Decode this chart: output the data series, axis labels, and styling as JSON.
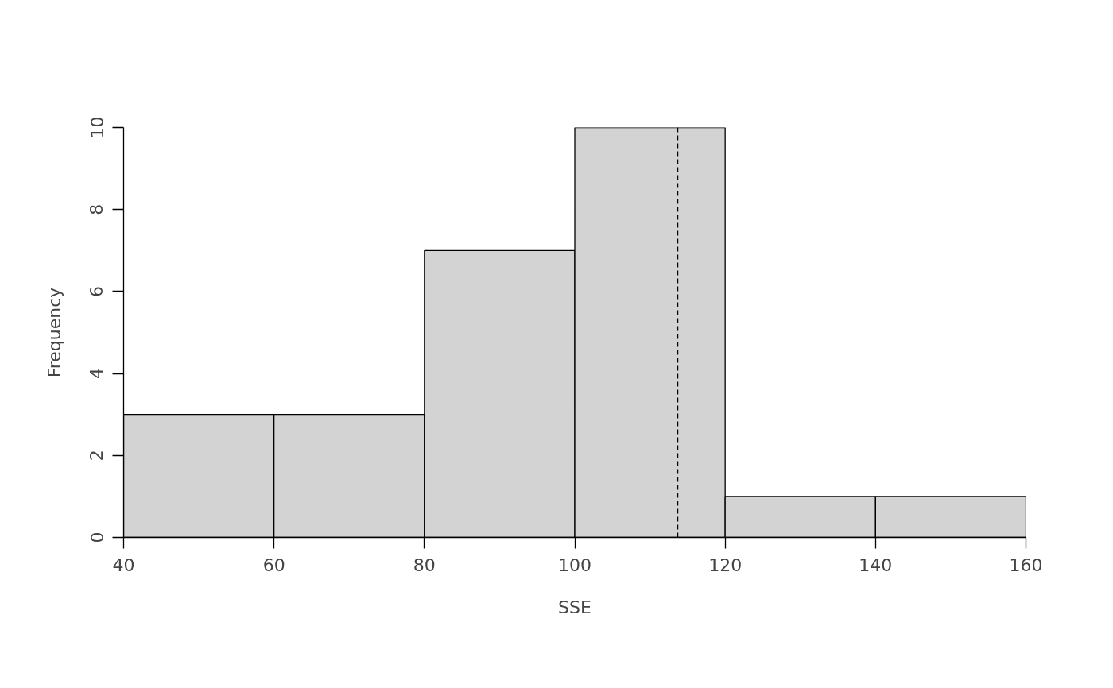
{
  "chart_data": {
    "type": "histogram",
    "xlabel": "SSE",
    "ylabel": "Frequency",
    "bins": [
      40,
      60,
      80,
      100,
      120,
      140,
      160
    ],
    "values": [
      3,
      3,
      7,
      10,
      1,
      1
    ],
    "color": "#d3d3d3",
    "xlim": [
      40,
      160
    ],
    "xticks": [
      40,
      60,
      80,
      100,
      120,
      140,
      160
    ],
    "ylim": [
      0,
      10
    ],
    "yticks": [
      0,
      2,
      4,
      6,
      8,
      10
    ],
    "grid": false,
    "ref_lines": [
      {
        "axis": "x",
        "value": 113.7,
        "line_style": "dashed",
        "color": "#000000"
      }
    ]
  }
}
